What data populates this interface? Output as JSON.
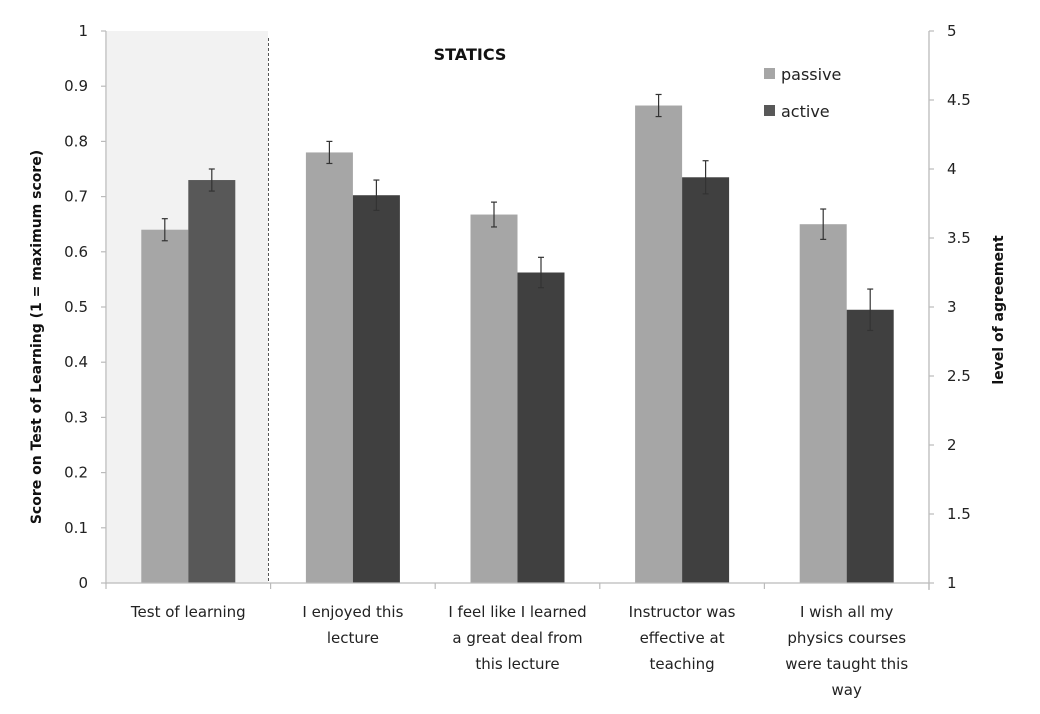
{
  "chart_data": {
    "type": "bar",
    "title": "STATICS",
    "categories": [
      [
        "Test of learning"
      ],
      [
        "I enjoyed this",
        "lecture"
      ],
      [
        "I feel like I learned",
        "a great deal from",
        "this lecture"
      ],
      [
        "Instructor was",
        "effective at",
        "teaching"
      ],
      [
        "I wish all my",
        "physics courses",
        "were taught this",
        "way"
      ]
    ],
    "category_axis": [
      "left",
      "right",
      "right",
      "right",
      "right"
    ],
    "series": [
      {
        "name": "passive",
        "color": "#a6a6a6",
        "values": [
          0.64,
          4.12,
          3.67,
          4.46,
          3.6
        ],
        "errors": [
          0.02,
          0.08,
          0.09,
          0.08,
          0.11
        ]
      },
      {
        "name": "active",
        "color": "#404040",
        "first_color": "#585858",
        "values": [
          0.73,
          3.81,
          3.25,
          3.94,
          2.98
        ],
        "errors": [
          0.02,
          0.11,
          0.11,
          0.12,
          0.15
        ]
      }
    ],
    "ylabel": "Score on Test of Learning  (1 = maximum score)",
    "y2label": "level of agreement",
    "ylim": [
      0,
      1
    ],
    "y2lim": [
      1,
      5
    ],
    "yticks": [
      "0",
      "0.1",
      "0.2",
      "0.3",
      "0.4",
      "0.5",
      "0.6",
      "0.7",
      "0.8",
      "0.9",
      "1"
    ],
    "y2ticks": [
      "1",
      "1.5",
      "2",
      "2.5",
      "3",
      "3.5",
      "4",
      "4.5",
      "5"
    ],
    "grid": false,
    "legend_position": "top-right",
    "highlight_background": "#f2f2f2"
  }
}
